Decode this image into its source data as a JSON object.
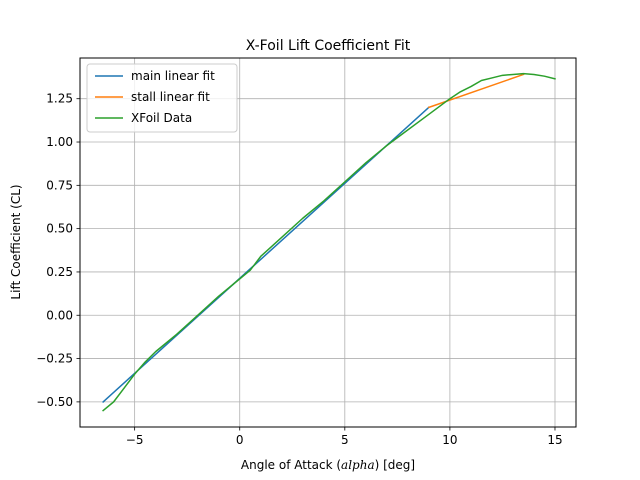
{
  "chart_data": {
    "type": "line",
    "title": "X-Foil Lift Coefficient Fit",
    "xlabel_prefix": "Angle of Attack (",
    "xlabel_math": "alpha",
    "xlabel_suffix": ") [deg]",
    "ylabel": "Lift Coefficient (CL)",
    "xlim": [
      -7.6,
      16.0
    ],
    "ylim": [
      -0.645,
      1.485
    ],
    "xticks": [
      -5,
      0,
      5,
      10,
      15
    ],
    "xtick_labels": [
      "−5",
      "0",
      "5",
      "10",
      "15"
    ],
    "yticks": [
      -0.5,
      -0.25,
      0.0,
      0.25,
      0.5,
      0.75,
      1.0,
      1.25
    ],
    "ytick_labels": [
      "−0.50",
      "−0.25",
      "0.00",
      "0.25",
      "0.50",
      "0.75",
      "1.00",
      "1.25"
    ],
    "grid": true,
    "legend_position": "upper-left",
    "series": [
      {
        "name": "main linear fit",
        "color": "#1f77b4",
        "x": [
          -6.5,
          9.0
        ],
        "y": [
          -0.5,
          1.2
        ]
      },
      {
        "name": "stall linear fit",
        "color": "#ff7f0e",
        "x": [
          9.0,
          13.5
        ],
        "y": [
          1.2,
          1.39
        ]
      },
      {
        "name": "XFoil Data",
        "color": "#2ca02c",
        "x": [
          -6.5,
          -6.0,
          -5.5,
          -5.0,
          -4.5,
          -4.0,
          -3.0,
          -2.0,
          -1.0,
          0.0,
          0.5,
          1.0,
          2.0,
          3.0,
          4.0,
          5.0,
          6.0,
          7.0,
          8.0,
          9.0,
          10.0,
          10.5,
          11.0,
          11.5,
          12.0,
          12.5,
          13.0,
          13.5,
          14.0,
          14.5,
          15.0
        ],
        "y": [
          -0.55,
          -0.5,
          -0.42,
          -0.34,
          -0.27,
          -0.21,
          -0.11,
          0.0,
          0.11,
          0.21,
          0.26,
          0.34,
          0.45,
          0.56,
          0.66,
          0.77,
          0.88,
          0.98,
          1.07,
          1.16,
          1.25,
          1.29,
          1.32,
          1.355,
          1.37,
          1.385,
          1.39,
          1.395,
          1.39,
          1.38,
          1.365
        ]
      }
    ]
  }
}
